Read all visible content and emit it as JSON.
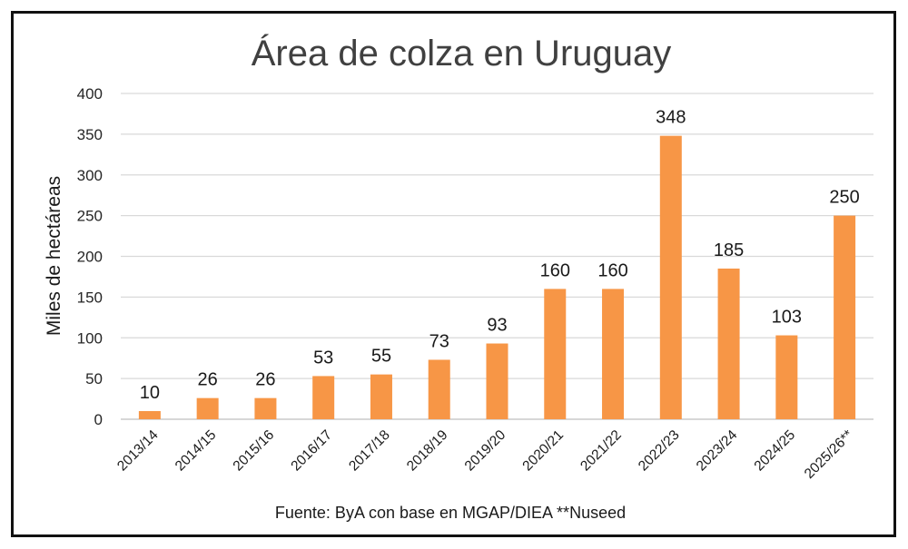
{
  "chart_data": {
    "type": "bar",
    "title": "Área de colza en Uruguay",
    "xlabel": "",
    "ylabel": "Miles de hectáreas",
    "ylim": [
      0,
      400
    ],
    "yticks": [
      0,
      50,
      100,
      150,
      200,
      250,
      300,
      350,
      400
    ],
    "grid": true,
    "legend": "none",
    "categories": [
      "2013/14",
      "2014/15",
      "2015/16",
      "2016/17",
      "2017/18",
      "2018/19",
      "2019/20",
      "2020/21",
      "2021/22",
      "2022/23",
      "2023/24",
      "2024/25",
      "2025/26**"
    ],
    "values": [
      10,
      26,
      26,
      53,
      55,
      73,
      93,
      160,
      160,
      348,
      185,
      103,
      250
    ],
    "bar_color": "#F79646",
    "source": "Fuente: ByA con base en MGAP/DIEA **Nuseed"
  }
}
